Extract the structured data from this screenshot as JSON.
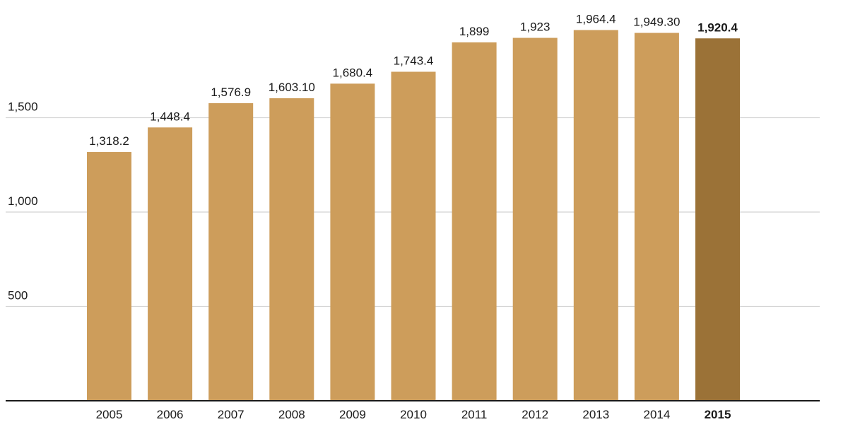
{
  "chart_data": {
    "type": "bar",
    "categories": [
      "2005",
      "2006",
      "2007",
      "2008",
      "2009",
      "2010",
      "2011",
      "2012",
      "2013",
      "2014",
      "2015"
    ],
    "values": [
      1318.2,
      1448.4,
      1576.9,
      1603.1,
      1680.4,
      1743.4,
      1899,
      1923,
      1964.4,
      1949.3,
      1920.4
    ],
    "value_labels": [
      "1,318.2",
      "1,448.4",
      "1,576.9",
      "1,603.10",
      "1,680.4",
      "1,743.4",
      "1,899",
      "1,923",
      "1,964.4",
      "1,949.30",
      "1,920.4"
    ],
    "highlight_index": 10,
    "ylim": [
      0,
      2000
    ],
    "yticks": [
      500,
      1000,
      1500
    ],
    "ytick_labels": [
      "500",
      "1,000",
      "1,500"
    ],
    "grid": true,
    "colors": {
      "bar": "#CD9D5B",
      "highlight_bar": "#9B7237",
      "grid": "#d4d4d4",
      "axis": "#1a1a1a",
      "text": "#1a1a1a"
    }
  }
}
